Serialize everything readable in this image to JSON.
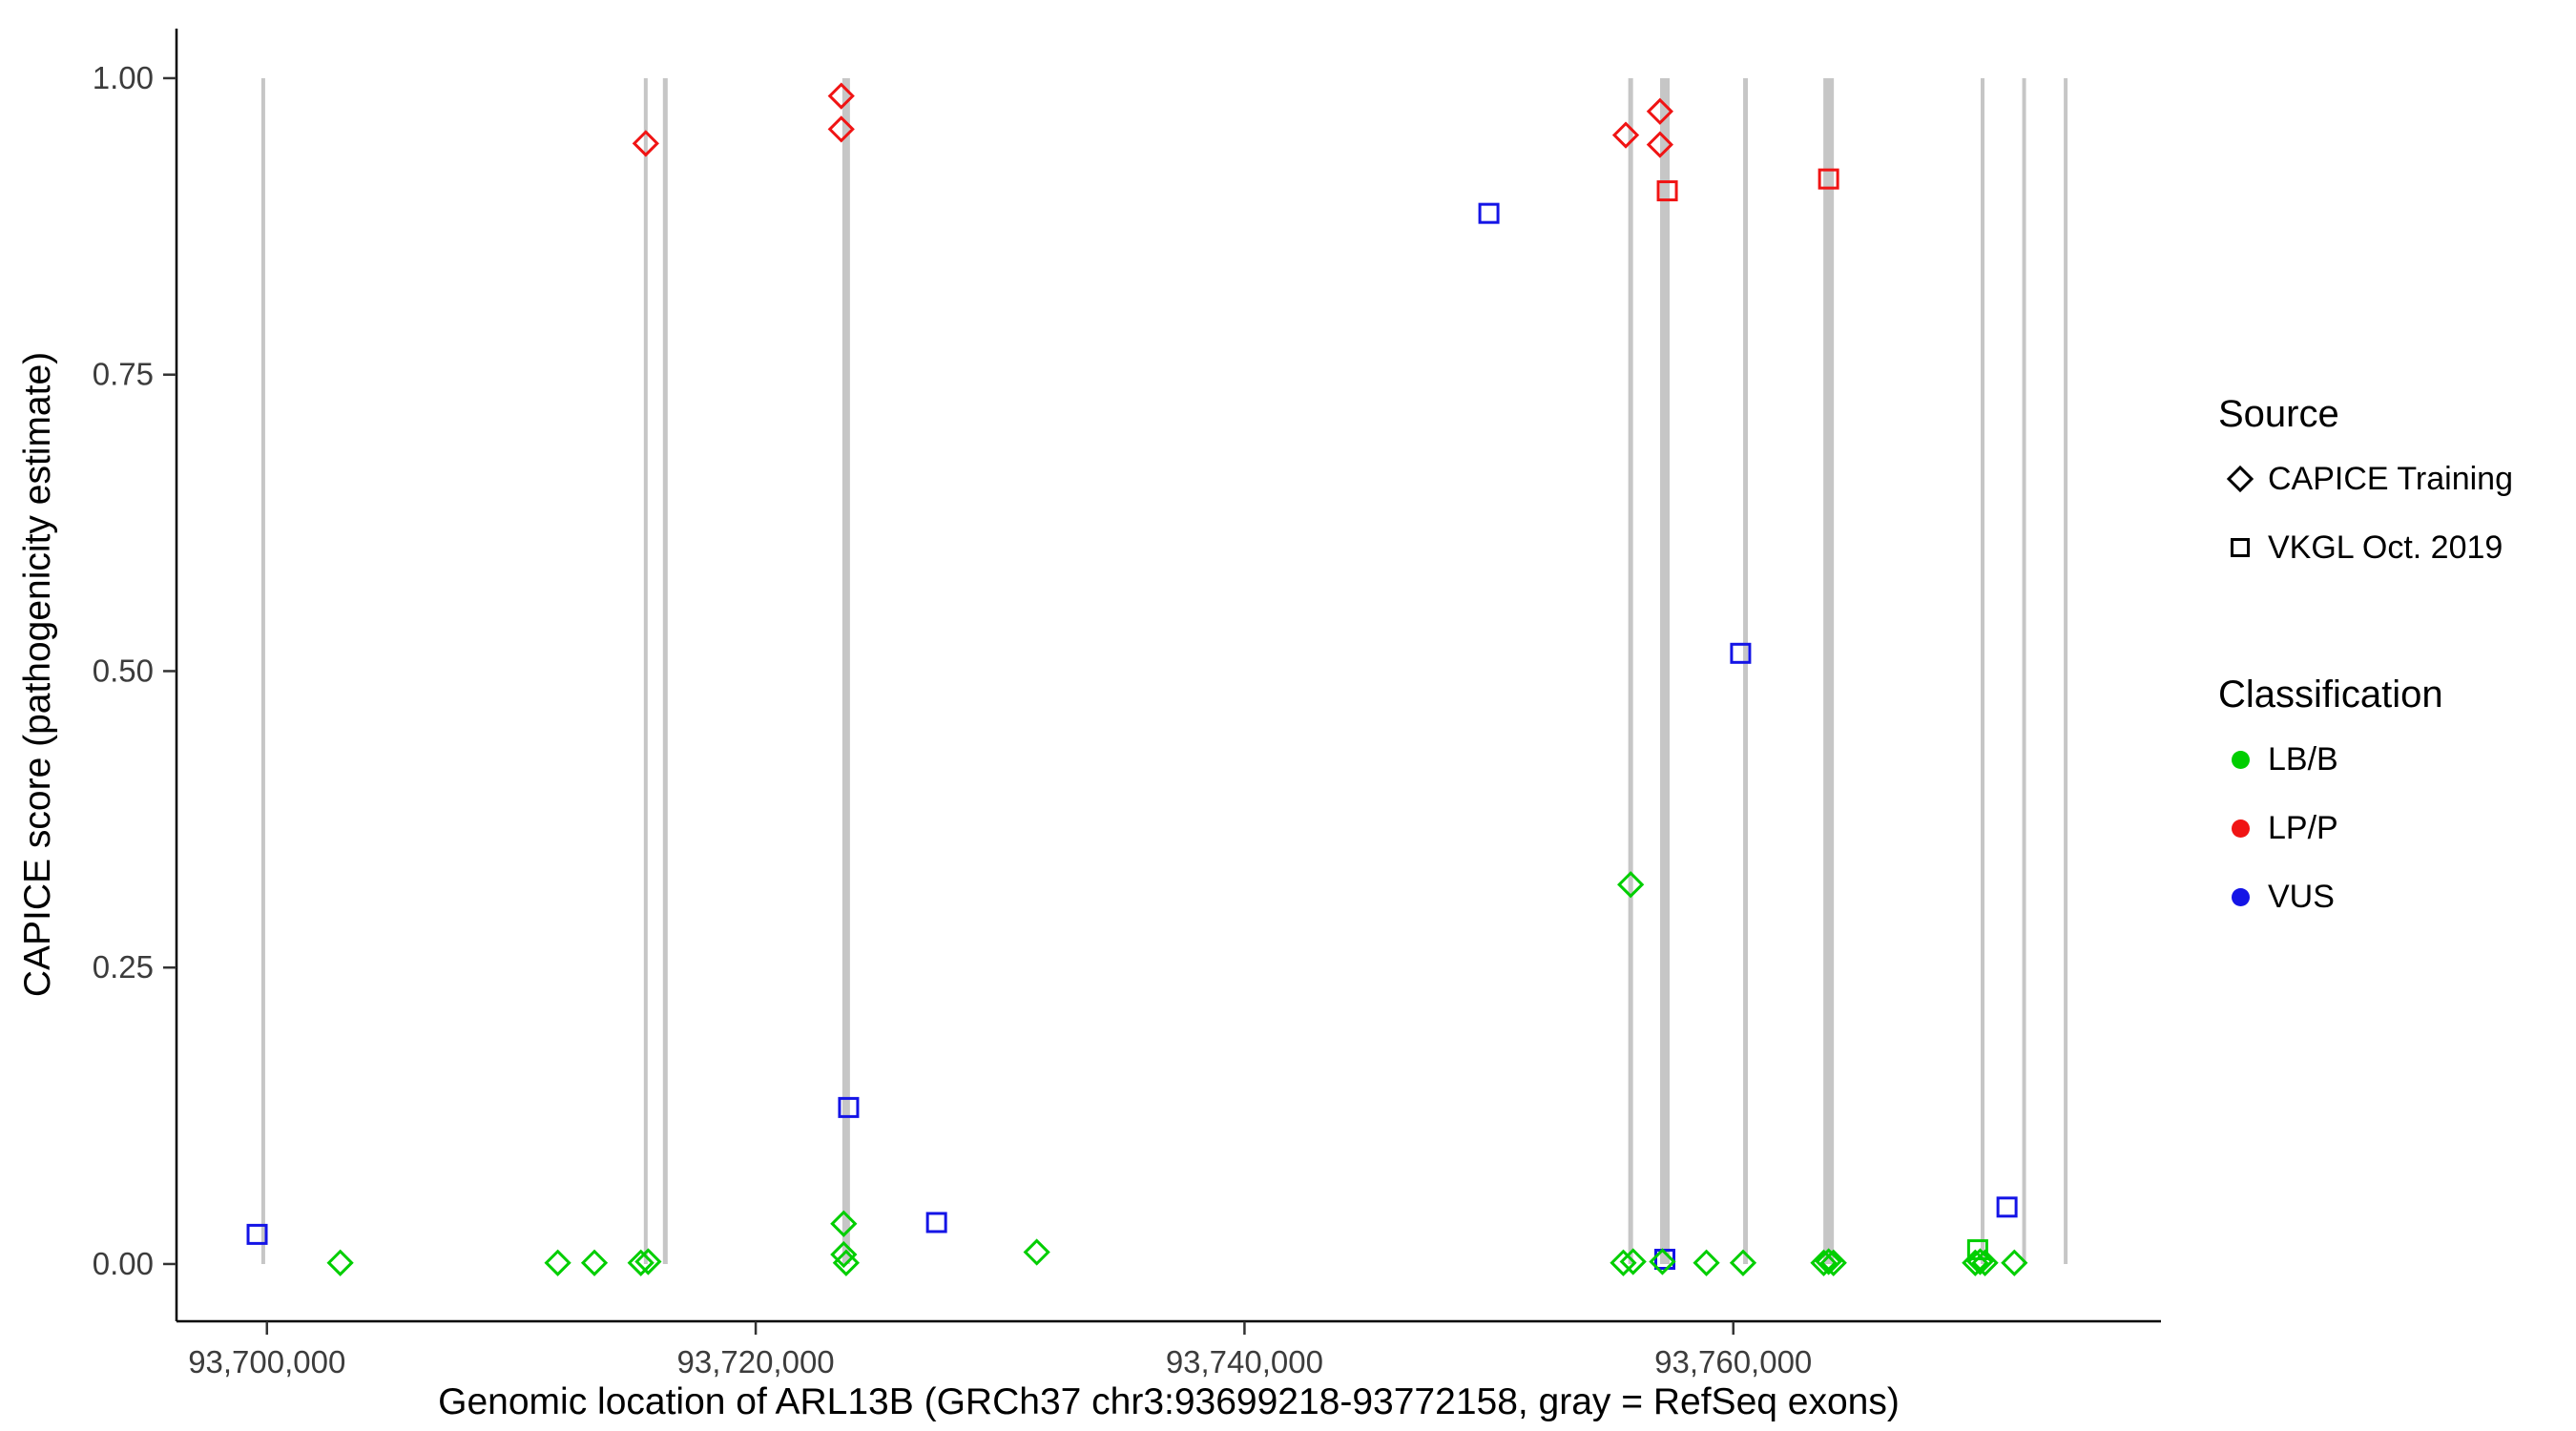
{
  "chart_data": {
    "type": "scatter",
    "title": "",
    "xlabel": "Genomic location of ARL13B (GRCh37 chr3:93699218-93772158, gray = RefSeq exons)",
    "ylabel": "CAPICE score (pathogenicity estimate)",
    "xlim": [
      93696300,
      93777500
    ],
    "ylim": [
      -0.0483,
      1.0418
    ],
    "grid": false,
    "legend_position": "right",
    "x_ticks": [
      {
        "value": 93700000,
        "label": "93,700,000"
      },
      {
        "value": 93720000,
        "label": "93,720,000"
      },
      {
        "value": 93740000,
        "label": "93,740,000"
      },
      {
        "value": 93760000,
        "label": "93,760,000"
      }
    ],
    "y_ticks": [
      {
        "value": 0.0,
        "label": "0.00"
      },
      {
        "value": 0.25,
        "label": "0.25"
      },
      {
        "value": 0.5,
        "label": "0.50"
      },
      {
        "value": 0.75,
        "label": "0.75"
      },
      {
        "value": 1.0,
        "label": "1.00"
      }
    ],
    "colors": {
      "LB/B": "#00CE00",
      "LP/P": "#F01414",
      "VUS": "#1414E6",
      "exon": "#C6C6C6",
      "axis": "#000000",
      "tick_label": "#3C3C3C"
    },
    "shape_by_source": {
      "CAPICE Training": "diamond",
      "VKGL Oct. 2019": "square"
    },
    "exons": [
      {
        "x": 93699850,
        "w": 4
      },
      {
        "x": 93715500,
        "w": 4
      },
      {
        "x": 93716300,
        "w": 5
      },
      {
        "x": 93723700,
        "w": 8
      },
      {
        "x": 93755800,
        "w": 5
      },
      {
        "x": 93757200,
        "w": 10
      },
      {
        "x": 93760500,
        "w": 5
      },
      {
        "x": 93763900,
        "w": 11
      },
      {
        "x": 93770200,
        "w": 4
      },
      {
        "x": 93771900,
        "w": 4
      },
      {
        "x": 93773600,
        "w": 4
      }
    ],
    "points": [
      {
        "x": 93715500,
        "y": 0.945,
        "source": "CAPICE Training",
        "classification": "LP/P"
      },
      {
        "x": 93723500,
        "y": 0.985,
        "source": "CAPICE Training",
        "classification": "LP/P"
      },
      {
        "x": 93723500,
        "y": 0.957,
        "source": "CAPICE Training",
        "classification": "LP/P"
      },
      {
        "x": 93755600,
        "y": 0.952,
        "source": "CAPICE Training",
        "classification": "LP/P"
      },
      {
        "x": 93757000,
        "y": 0.972,
        "source": "CAPICE Training",
        "classification": "LP/P"
      },
      {
        "x": 93757000,
        "y": 0.944,
        "source": "CAPICE Training",
        "classification": "LP/P"
      },
      {
        "x": 93757300,
        "y": 0.905,
        "source": "VKGL Oct. 2019",
        "classification": "LP/P"
      },
      {
        "x": 93763900,
        "y": 0.915,
        "source": "VKGL Oct. 2019",
        "classification": "LP/P"
      },
      {
        "x": 93699600,
        "y": 0.025,
        "source": "VKGL Oct. 2019",
        "classification": "VUS"
      },
      {
        "x": 93723800,
        "y": 0.132,
        "source": "VKGL Oct. 2019",
        "classification": "VUS"
      },
      {
        "x": 93727400,
        "y": 0.035,
        "source": "VKGL Oct. 2019",
        "classification": "VUS"
      },
      {
        "x": 93750000,
        "y": 0.886,
        "source": "VKGL Oct. 2019",
        "classification": "VUS"
      },
      {
        "x": 93760300,
        "y": 0.515,
        "source": "VKGL Oct. 2019",
        "classification": "VUS"
      },
      {
        "x": 93757200,
        "y": 0.004,
        "source": "VKGL Oct. 2019",
        "classification": "VUS"
      },
      {
        "x": 93771200,
        "y": 0.048,
        "source": "VKGL Oct. 2019",
        "classification": "VUS"
      },
      {
        "x": 93770000,
        "y": 0.012,
        "source": "VKGL Oct. 2019",
        "classification": "LB/B"
      },
      {
        "x": 93703000,
        "y": 0.001,
        "source": "CAPICE Training",
        "classification": "LB/B"
      },
      {
        "x": 93711900,
        "y": 0.001,
        "source": "CAPICE Training",
        "classification": "LB/B"
      },
      {
        "x": 93713400,
        "y": 0.001,
        "source": "CAPICE Training",
        "classification": "LB/B"
      },
      {
        "x": 93715300,
        "y": 0.001,
        "source": "CAPICE Training",
        "classification": "LB/B"
      },
      {
        "x": 93715600,
        "y": 0.002,
        "source": "CAPICE Training",
        "classification": "LB/B"
      },
      {
        "x": 93723600,
        "y": 0.034,
        "source": "CAPICE Training",
        "classification": "LB/B"
      },
      {
        "x": 93723600,
        "y": 0.008,
        "source": "CAPICE Training",
        "classification": "LB/B"
      },
      {
        "x": 93723700,
        "y": 0.001,
        "source": "CAPICE Training",
        "classification": "LB/B"
      },
      {
        "x": 93731500,
        "y": 0.01,
        "source": "CAPICE Training",
        "classification": "LB/B"
      },
      {
        "x": 93755800,
        "y": 0.32,
        "source": "CAPICE Training",
        "classification": "LB/B"
      },
      {
        "x": 93755500,
        "y": 0.001,
        "source": "CAPICE Training",
        "classification": "LB/B"
      },
      {
        "x": 93755900,
        "y": 0.002,
        "source": "CAPICE Training",
        "classification": "LB/B"
      },
      {
        "x": 93757100,
        "y": 0.002,
        "source": "CAPICE Training",
        "classification": "LB/B"
      },
      {
        "x": 93758900,
        "y": 0.001,
        "source": "CAPICE Training",
        "classification": "LB/B"
      },
      {
        "x": 93760400,
        "y": 0.001,
        "source": "CAPICE Training",
        "classification": "LB/B"
      },
      {
        "x": 93763700,
        "y": 0.001,
        "source": "CAPICE Training",
        "classification": "LB/B"
      },
      {
        "x": 93763900,
        "y": 0.002,
        "source": "CAPICE Training",
        "classification": "LB/B"
      },
      {
        "x": 93764100,
        "y": 0.001,
        "source": "CAPICE Training",
        "classification": "LB/B"
      },
      {
        "x": 93769900,
        "y": 0.001,
        "source": "CAPICE Training",
        "classification": "LB/B"
      },
      {
        "x": 93770100,
        "y": 0.002,
        "source": "CAPICE Training",
        "classification": "LB/B"
      },
      {
        "x": 93770300,
        "y": 0.001,
        "source": "CAPICE Training",
        "classification": "LB/B"
      },
      {
        "x": 93771500,
        "y": 0.001,
        "source": "CAPICE Training",
        "classification": "LB/B"
      }
    ]
  },
  "legend": {
    "source": {
      "title": "Source",
      "items": [
        {
          "label": "CAPICE Training",
          "shape": "diamond"
        },
        {
          "label": "VKGL Oct. 2019",
          "shape": "square"
        }
      ]
    },
    "classification": {
      "title": "Classification",
      "items": [
        {
          "label": "LB/B",
          "color_key": "LB/B"
        },
        {
          "label": "LP/P",
          "color_key": "LP/P"
        },
        {
          "label": "VUS",
          "color_key": "VUS"
        }
      ]
    }
  }
}
